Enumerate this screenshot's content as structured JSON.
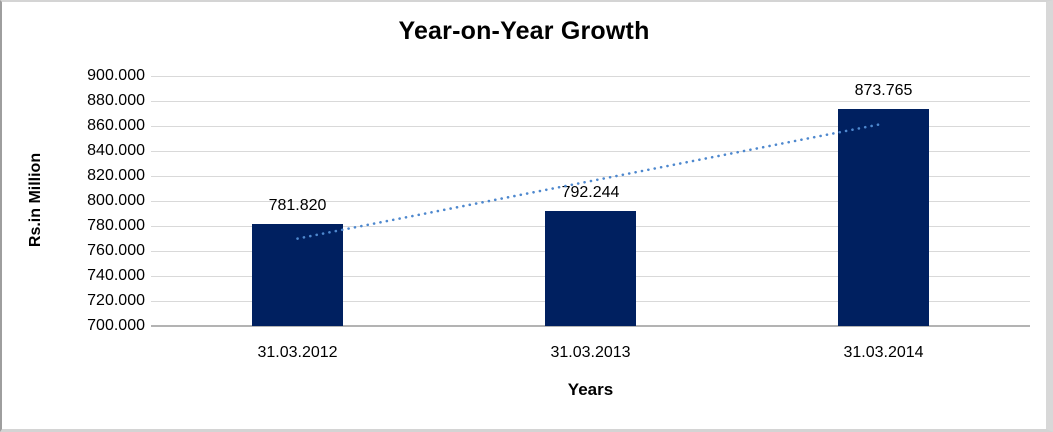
{
  "chart_data": {
    "type": "bar",
    "title": "Year-on-Year Growth",
    "xlabel": "Years",
    "ylabel": "Rs.in Million",
    "categories": [
      "31.03.2012",
      "31.03.2013",
      "31.03.2014"
    ],
    "values": [
      781.82,
      792.244,
      873.765
    ],
    "data_labels": [
      "781.820",
      "792.244",
      "873.765"
    ],
    "ylim": [
      700,
      900
    ],
    "ytick_step": 20,
    "ytick_labels": [
      "900.000",
      "880.000",
      "860.000",
      "840.000",
      "820.000",
      "800.000",
      "780.000",
      "760.000",
      "740.000",
      "720.000",
      "700.000"
    ],
    "grid": true,
    "legend": "none",
    "bar_color": "#002060",
    "gridline_color": "#d9d9d9",
    "axis_line_color": "#b3b3b3",
    "trendline": {
      "type": "linear",
      "style": "dotted",
      "color": "#4e88ce",
      "start_value": 769.9,
      "end_value": 861.9
    }
  }
}
